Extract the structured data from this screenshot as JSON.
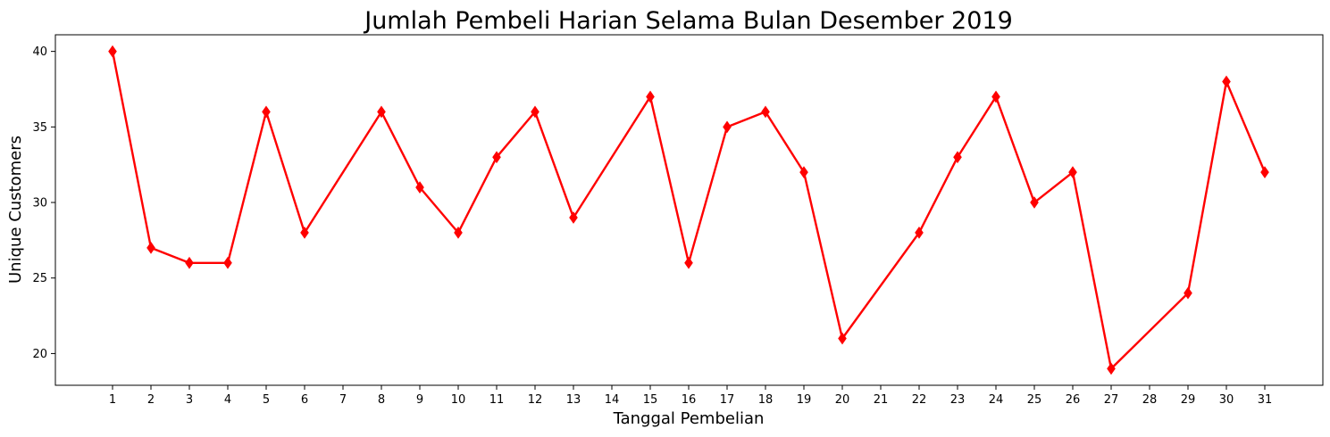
{
  "chart_data": {
    "type": "line",
    "title": "Jumlah Pembeli Harian Selama Bulan Desember 2019",
    "xlabel": "Tanggal Pembelian",
    "ylabel": "Unique Customers",
    "categories": [
      "1",
      "2",
      "3",
      "4",
      "5",
      "6",
      "7",
      "8",
      "9",
      "10",
      "11",
      "12",
      "13",
      "14",
      "15",
      "16",
      "17",
      "18",
      "19",
      "20",
      "21",
      "22",
      "23",
      "24",
      "25",
      "26",
      "27",
      "28",
      "29",
      "30",
      "31"
    ],
    "points": [
      {
        "x": "1",
        "y": 40
      },
      {
        "x": "2",
        "y": 27
      },
      {
        "x": "3",
        "y": 26
      },
      {
        "x": "4",
        "y": 26
      },
      {
        "x": "5",
        "y": 36
      },
      {
        "x": "6",
        "y": 28
      },
      {
        "x": "8",
        "y": 36
      },
      {
        "x": "9",
        "y": 31
      },
      {
        "x": "10",
        "y": 28
      },
      {
        "x": "11",
        "y": 33
      },
      {
        "x": "12",
        "y": 36
      },
      {
        "x": "13",
        "y": 29
      },
      {
        "x": "15",
        "y": 37
      },
      {
        "x": "16",
        "y": 26
      },
      {
        "x": "17",
        "y": 35
      },
      {
        "x": "18",
        "y": 36
      },
      {
        "x": "19",
        "y": 32
      },
      {
        "x": "20",
        "y": 21
      },
      {
        "x": "22",
        "y": 28
      },
      {
        "x": "23",
        "y": 33
      },
      {
        "x": "24",
        "y": 37
      },
      {
        "x": "25",
        "y": 30
      },
      {
        "x": "26",
        "y": 32
      },
      {
        "x": "27",
        "y": 19
      },
      {
        "x": "29",
        "y": 24
      },
      {
        "x": "30",
        "y": 38
      },
      {
        "x": "31",
        "y": 32
      }
    ],
    "yticks": [
      20,
      25,
      30,
      35,
      40
    ],
    "ylim": [
      17.9,
      41.1
    ],
    "color": "#ff0000",
    "marker": "diamond",
    "grid": false,
    "legend": false
  }
}
